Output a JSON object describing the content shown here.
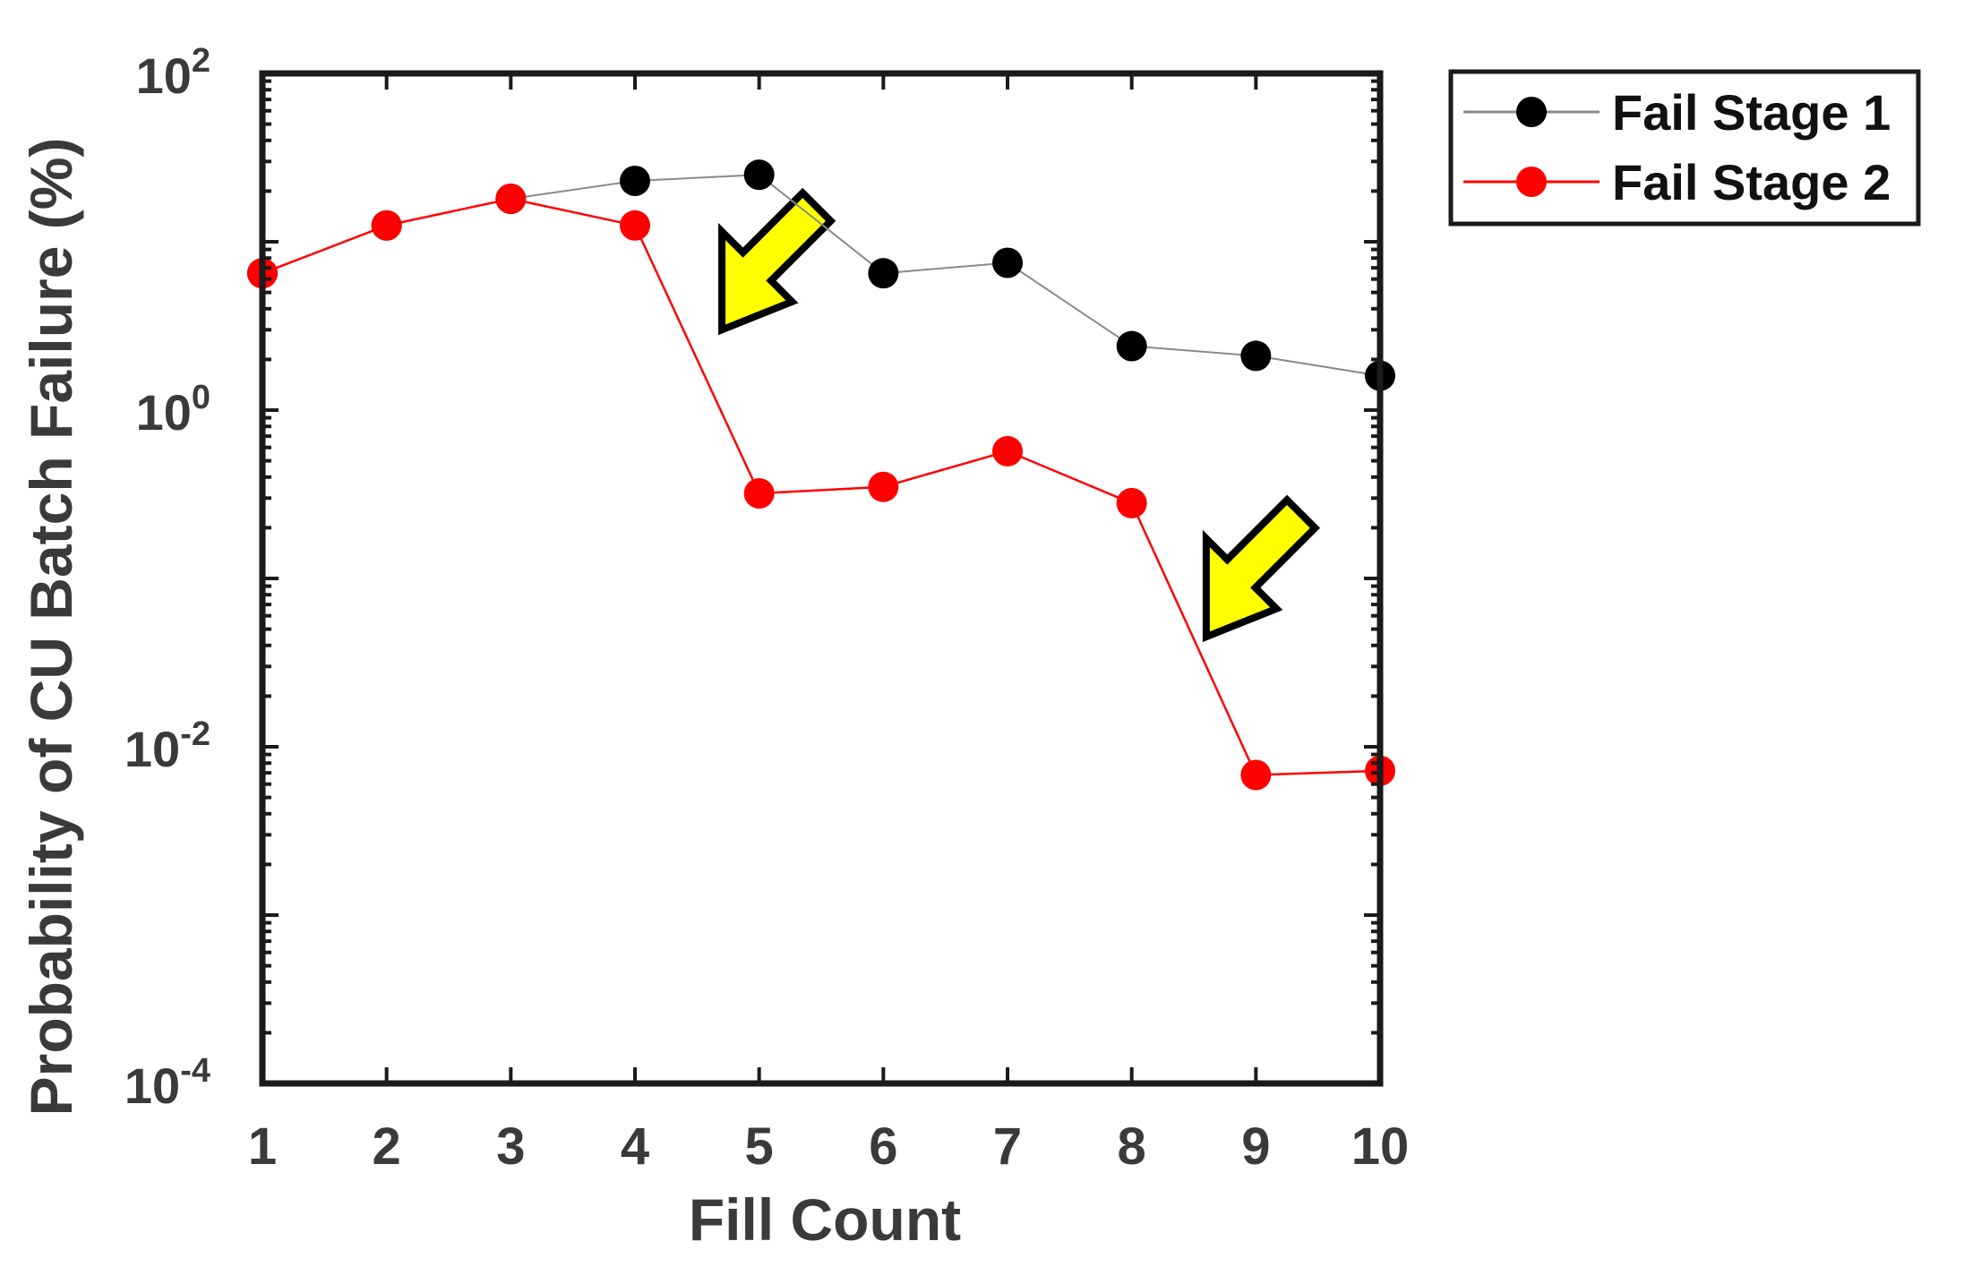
{
  "chart_data": {
    "type": "line",
    "title": "",
    "xlabel": "Fill Count",
    "ylabel": "Probability of CU Batch Failure (%)",
    "x": [
      1,
      2,
      3,
      4,
      5,
      6,
      7,
      8,
      9,
      10
    ],
    "xlim": [
      1,
      10
    ],
    "ylim": [
      0.0001,
      100
    ],
    "yscale": "log",
    "x_tick_labels": [
      "1",
      "2",
      "3",
      "4",
      "5",
      "6",
      "7",
      "8",
      "9",
      "10"
    ],
    "y_ticks": [
      {
        "base": "10",
        "exp": "2",
        "value": 100
      },
      {
        "base": "10",
        "exp": "0",
        "value": 1
      },
      {
        "base": "10",
        "exp": "-2",
        "value": 0.01
      },
      {
        "base": "10",
        "exp": "-4",
        "value": 0.0001
      }
    ],
    "grid": false,
    "legend_position": "outside-top-right",
    "series": [
      {
        "name": "Fail Stage 1",
        "color": "#000000",
        "line_color": "#8a8a8a",
        "values": [
          6.5,
          12.5,
          18,
          23,
          25,
          6.5,
          7.5,
          2.4,
          2.1,
          1.6
        ]
      },
      {
        "name": "Fail Stage 2",
        "color": "#ff0000",
        "line_color": "#ff0000",
        "values": [
          6.5,
          12.5,
          18,
          12.5,
          0.32,
          0.35,
          0.57,
          0.28,
          0.0068,
          0.0072
        ]
      }
    ],
    "annotations": [
      {
        "type": "arrow",
        "color": "#ffff00",
        "tip": [
          4.7,
          3.0
        ]
      },
      {
        "type": "arrow",
        "color": "#ffff00",
        "tip": [
          8.6,
          0.045
        ]
      }
    ]
  }
}
